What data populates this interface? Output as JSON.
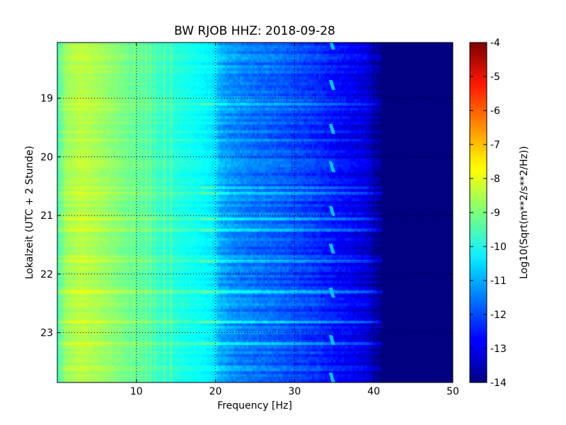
{
  "chart_data": {
    "type": "heatmap",
    "title": "BW RJOB HHZ: 2018-09-28",
    "xlabel": "Frequency [Hz]",
    "ylabel": "Lokalzeit (UTC + 2 Stunde)",
    "colorbar_label": "Log10(Sqrt(m**2/s**2/Hz))",
    "x_ticks": [
      "10",
      "20",
      "30",
      "40",
      "50"
    ],
    "x_tick_values": [
      10,
      20,
      30,
      40,
      50
    ],
    "y_ticks": [
      "19",
      "20",
      "21",
      "22",
      "23"
    ],
    "y_tick_values": [
      19,
      20,
      21,
      22,
      23
    ],
    "colorbar_ticks": [
      "-4",
      "-5",
      "-6",
      "-7",
      "-8",
      "-9",
      "-10",
      "-11",
      "-12",
      "-13",
      "-14"
    ],
    "colorbar_tick_values": [
      -4,
      -5,
      -6,
      -7,
      -8,
      -9,
      -10,
      -11,
      -12,
      -13,
      -14
    ],
    "xlim": [
      0,
      50
    ],
    "ylim": [
      18.05,
      23.85
    ],
    "clim": [
      -14,
      -4
    ],
    "colormap": "jet",
    "grid": true,
    "y_inverted": true,
    "freq_profile": {
      "x": [
        0,
        1,
        3,
        5,
        8,
        10,
        12,
        15,
        18,
        19.5,
        20.5,
        22,
        25,
        28,
        30,
        33,
        35,
        37,
        39,
        40,
        41,
        42,
        45,
        50
      ],
      "values": [
        -9.6,
        -8.7,
        -8.4,
        -8.6,
        -9.0,
        -9.3,
        -9.6,
        -9.9,
        -10.2,
        -10.4,
        -11.0,
        -11.3,
        -11.6,
        -11.8,
        -12.0,
        -12.3,
        -12.6,
        -12.8,
        -13.1,
        -13.5,
        -14.0,
        -14.0,
        -14.0,
        -14.0
      ]
    },
    "tonal_lines_hz": [
      9.7,
      10.6,
      11.2,
      11.7,
      12.3,
      13.5,
      14.3,
      20.0
    ],
    "event_hours": [
      18.12,
      18.8,
      19.55,
      20.2,
      20.95,
      21.6,
      22.35,
      23.15,
      23.8
    ],
    "event_freq_hz": 34.5,
    "event_value": -10.8,
    "bright_row_hours": [
      19.1,
      20.52,
      20.62,
      21.05,
      21.25,
      21.78,
      22.3,
      22.82,
      23.18
    ],
    "bright_row_delta": 0.9
  }
}
